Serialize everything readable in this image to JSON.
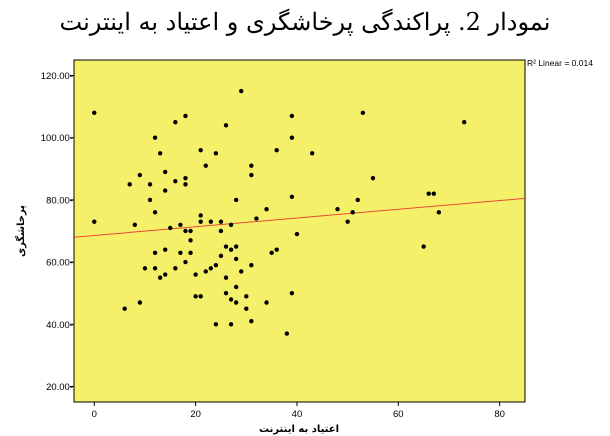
{
  "caption": "نمودار 2. پراکندگی پرخاشگری و اعتیاد به اینترنت",
  "colors": {
    "plot_background": "#f5f06a",
    "points": "#000000",
    "fit_line": "#e8493a"
  },
  "chart_data": {
    "type": "scatter",
    "xlabel": "اعتیاد به اینترنت",
    "ylabel": "پرخاشگری",
    "xlim": [
      -4,
      85
    ],
    "ylim": [
      15,
      125
    ],
    "xticks": [
      0,
      20,
      40,
      60,
      80
    ],
    "xtick_labels": [
      "0",
      "20",
      "40",
      "60",
      "80"
    ],
    "yticks": [
      20,
      40,
      60,
      80,
      100,
      120
    ],
    "ytick_labels": [
      "20.00-",
      "40.00-",
      "60.00-",
      "80.00-",
      "100.00-",
      "120.00-"
    ],
    "fit_line": {
      "label": "R² Linear = 0.014",
      "x": [
        -4,
        85
      ],
      "y": [
        68,
        80.5
      ]
    },
    "points": [
      [
        0,
        108
      ],
      [
        0,
        73
      ],
      [
        6,
        45
      ],
      [
        7,
        85
      ],
      [
        8,
        72
      ],
      [
        9,
        88
      ],
      [
        9,
        47
      ],
      [
        10,
        58
      ],
      [
        11,
        85
      ],
      [
        11,
        80
      ],
      [
        12,
        76
      ],
      [
        12,
        100
      ],
      [
        12,
        63
      ],
      [
        12,
        58
      ],
      [
        13,
        55
      ],
      [
        13,
        95
      ],
      [
        14,
        83
      ],
      [
        14,
        89
      ],
      [
        14,
        64
      ],
      [
        14,
        56
      ],
      [
        15,
        71
      ],
      [
        16,
        86
      ],
      [
        16,
        105
      ],
      [
        16,
        58
      ],
      [
        17,
        72
      ],
      [
        17,
        63
      ],
      [
        18,
        70
      ],
      [
        18,
        107
      ],
      [
        18,
        87
      ],
      [
        18,
        85
      ],
      [
        18,
        60
      ],
      [
        19,
        67
      ],
      [
        19,
        70
      ],
      [
        19,
        63
      ],
      [
        20,
        56
      ],
      [
        20,
        49
      ],
      [
        21,
        75
      ],
      [
        21,
        73
      ],
      [
        21,
        96
      ],
      [
        21,
        49
      ],
      [
        22,
        91
      ],
      [
        22,
        57
      ],
      [
        23,
        73
      ],
      [
        23,
        58
      ],
      [
        24,
        95
      ],
      [
        24,
        59
      ],
      [
        24,
        40
      ],
      [
        25,
        73
      ],
      [
        25,
        62
      ],
      [
        25,
        70
      ],
      [
        26,
        104
      ],
      [
        26,
        65
      ],
      [
        26,
        55
      ],
      [
        26,
        50
      ],
      [
        27,
        72
      ],
      [
        27,
        64
      ],
      [
        27,
        48
      ],
      [
        27,
        40
      ],
      [
        28,
        80
      ],
      [
        28,
        65
      ],
      [
        28,
        61
      ],
      [
        28,
        52
      ],
      [
        28,
        47
      ],
      [
        29,
        115
      ],
      [
        29,
        57
      ],
      [
        30,
        49
      ],
      [
        30,
        45
      ],
      [
        31,
        91
      ],
      [
        31,
        88
      ],
      [
        31,
        59
      ],
      [
        31,
        41
      ],
      [
        32,
        74
      ],
      [
        34,
        77
      ],
      [
        34,
        47
      ],
      [
        35,
        63
      ],
      [
        36,
        64
      ],
      [
        36,
        96
      ],
      [
        38,
        37
      ],
      [
        39,
        107
      ],
      [
        39,
        100
      ],
      [
        39,
        81
      ],
      [
        39,
        50
      ],
      [
        40,
        69
      ],
      [
        43,
        95
      ],
      [
        48,
        77
      ],
      [
        50,
        73
      ],
      [
        51,
        76
      ],
      [
        52,
        80
      ],
      [
        53,
        108
      ],
      [
        55,
        87
      ],
      [
        65,
        65
      ],
      [
        66,
        82
      ],
      [
        67,
        82
      ],
      [
        68,
        76
      ],
      [
        73,
        105
      ]
    ]
  }
}
